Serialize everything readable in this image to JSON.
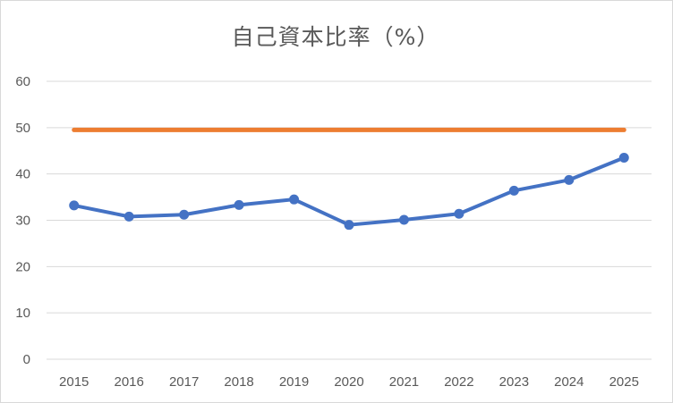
{
  "chart_data": {
    "type": "line",
    "title": "自己資本比率（%）",
    "xlabel": "",
    "ylabel": "",
    "categories": [
      "2015",
      "2016",
      "2017",
      "2018",
      "2019",
      "2020",
      "2021",
      "2022",
      "2023",
      "2024",
      "2025"
    ],
    "ylim": [
      0,
      60
    ],
    "yticks": [
      "0",
      "10",
      "20",
      "30",
      "40",
      "50",
      "60"
    ],
    "grid": true,
    "legend": "none",
    "series": [
      {
        "color": "#4472c4",
        "markers": true,
        "values": [
          33.2,
          30.8,
          31.2,
          33.3,
          34.5,
          29.0,
          30.1,
          31.4,
          36.4,
          38.7,
          43.5
        ]
      },
      {
        "color": "#ed7d31",
        "markers": false,
        "values": [
          49.5,
          49.5,
          49.5,
          49.5,
          49.5,
          49.5,
          49.5,
          49.5,
          49.5,
          49.5,
          49.5
        ]
      }
    ],
    "gridline_color": "#d9d9d9"
  }
}
